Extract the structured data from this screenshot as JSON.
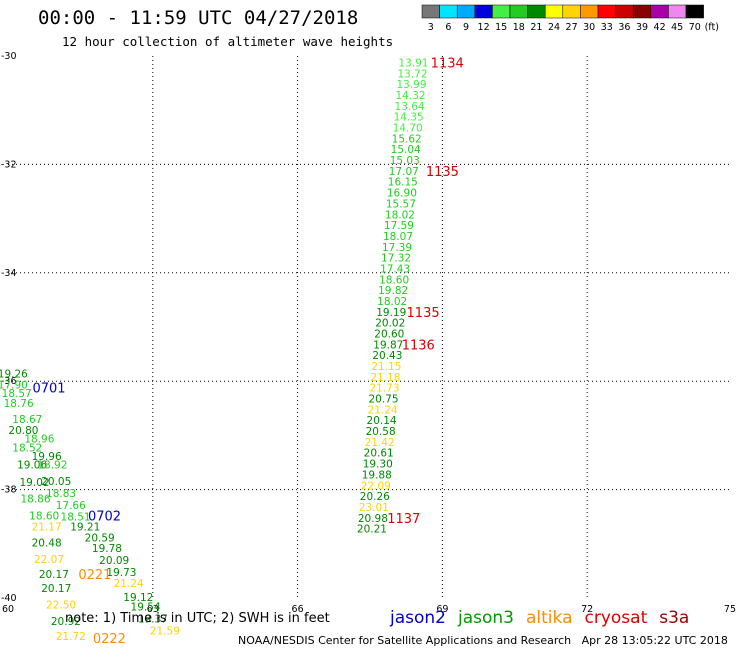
{
  "header": {
    "title": "00:00 - 11:59 UTC 04/27/2018",
    "subtitle": "12 hour collection of altimeter wave heights"
  },
  "color_scale": {
    "unit": "(ft)",
    "bins": [
      {
        "label": "3",
        "color": "#777777"
      },
      {
        "label": "6",
        "color": "#00e5ff"
      },
      {
        "label": "9",
        "color": "#00aaff"
      },
      {
        "label": "12",
        "color": "#0000dd"
      },
      {
        "label": "15",
        "color": "#44ee44"
      },
      {
        "label": "18",
        "color": "#22cc22"
      },
      {
        "label": "21",
        "color": "#008800"
      },
      {
        "label": "24",
        "color": "#ffff00"
      },
      {
        "label": "27",
        "color": "#ffd400"
      },
      {
        "label": "30",
        "color": "#ff9900"
      },
      {
        "label": "33",
        "color": "#ff0000"
      },
      {
        "label": "36",
        "color": "#cc0000"
      },
      {
        "label": "39",
        "color": "#880000"
      },
      {
        "label": "42",
        "color": "#aa00aa"
      },
      {
        "label": "45",
        "color": "#ee88ee"
      },
      {
        "label": "70",
        "color": "#000000"
      }
    ]
  },
  "chart_data": {
    "type": "scatter",
    "title": "00:00 - 11:59 UTC 04/27/2018",
    "subtitle": "12 hour collection of altimeter wave heights",
    "xlabel": "",
    "ylabel": "",
    "xlim": [
      60,
      75
    ],
    "ylim": [
      -40,
      -30
    ],
    "x_ticks": [
      "60",
      "63",
      "66",
      "69",
      "72",
      "75"
    ],
    "y_ticks": [
      "-30",
      "-32",
      "-34",
      "-36",
      "-38",
      "-40"
    ],
    "grid": true,
    "swh_points": [
      {
        "lon": 68.4,
        "lat": -30.12,
        "text": "13.91",
        "color": "#44ee44"
      },
      {
        "lon": 68.38,
        "lat": -30.32,
        "text": "13.72",
        "color": "#44ee44"
      },
      {
        "lon": 68.36,
        "lat": -30.52,
        "text": "13.99",
        "color": "#44ee44"
      },
      {
        "lon": 68.34,
        "lat": -30.72,
        "text": "14.32",
        "color": "#44ee44"
      },
      {
        "lon": 68.32,
        "lat": -30.92,
        "text": "13.64",
        "color": "#44ee44"
      },
      {
        "lon": 68.3,
        "lat": -31.12,
        "text": "14.35",
        "color": "#44ee44"
      },
      {
        "lon": 68.28,
        "lat": -31.32,
        "text": "14.70",
        "color": "#44ee44"
      },
      {
        "lon": 68.26,
        "lat": -31.52,
        "text": "15.62",
        "color": "#22cc22"
      },
      {
        "lon": 68.24,
        "lat": -31.72,
        "text": "15.04",
        "color": "#22cc22"
      },
      {
        "lon": 68.22,
        "lat": -31.92,
        "text": "15.03",
        "color": "#22cc22"
      },
      {
        "lon": 68.2,
        "lat": -32.12,
        "text": "17.07",
        "color": "#22cc22"
      },
      {
        "lon": 68.18,
        "lat": -32.32,
        "text": "16.15",
        "color": "#22cc22"
      },
      {
        "lon": 68.16,
        "lat": -32.52,
        "text": "16.90",
        "color": "#22cc22"
      },
      {
        "lon": 68.14,
        "lat": -32.72,
        "text": "15.57",
        "color": "#22cc22"
      },
      {
        "lon": 68.12,
        "lat": -32.92,
        "text": "18.02",
        "color": "#22cc22"
      },
      {
        "lon": 68.1,
        "lat": -33.12,
        "text": "17.59",
        "color": "#22cc22"
      },
      {
        "lon": 68.08,
        "lat": -33.32,
        "text": "18.07",
        "color": "#22cc22"
      },
      {
        "lon": 68.06,
        "lat": -33.52,
        "text": "17.39",
        "color": "#22cc22"
      },
      {
        "lon": 68.04,
        "lat": -33.72,
        "text": "17.32",
        "color": "#22cc22"
      },
      {
        "lon": 68.02,
        "lat": -33.92,
        "text": "17.43",
        "color": "#22cc22"
      },
      {
        "lon": 68.0,
        "lat": -34.12,
        "text": "18.60",
        "color": "#22cc22"
      },
      {
        "lon": 67.98,
        "lat": -34.32,
        "text": "19.82",
        "color": "#22cc22"
      },
      {
        "lon": 67.96,
        "lat": -34.52,
        "text": "18.02",
        "color": "#22cc22"
      },
      {
        "lon": 67.94,
        "lat": -34.72,
        "text": "19.19",
        "color": "#008800"
      },
      {
        "lon": 67.92,
        "lat": -34.92,
        "text": "20.02",
        "color": "#008800"
      },
      {
        "lon": 67.9,
        "lat": -35.12,
        "text": "20.60",
        "color": "#008800"
      },
      {
        "lon": 67.88,
        "lat": -35.32,
        "text": "19.87",
        "color": "#008800"
      },
      {
        "lon": 67.86,
        "lat": -35.52,
        "text": "20.43",
        "color": "#008800"
      },
      {
        "lon": 67.84,
        "lat": -35.72,
        "text": "21.15",
        "color": "#ffd400"
      },
      {
        "lon": 67.82,
        "lat": -35.92,
        "text": "21.18",
        "color": "#ffd400"
      },
      {
        "lon": 67.8,
        "lat": -36.12,
        "text": "21.73",
        "color": "#ffd400"
      },
      {
        "lon": 67.78,
        "lat": -36.32,
        "text": "20.75",
        "color": "#008800"
      },
      {
        "lon": 67.76,
        "lat": -36.52,
        "text": "21.24",
        "color": "#ffd400"
      },
      {
        "lon": 67.74,
        "lat": -36.72,
        "text": "20.14",
        "color": "#008800"
      },
      {
        "lon": 67.72,
        "lat": -36.92,
        "text": "20.58",
        "color": "#008800"
      },
      {
        "lon": 67.7,
        "lat": -37.12,
        "text": "21.42",
        "color": "#ffd400"
      },
      {
        "lon": 67.68,
        "lat": -37.32,
        "text": "20.61",
        "color": "#008800"
      },
      {
        "lon": 67.66,
        "lat": -37.52,
        "text": "19.30",
        "color": "#008800"
      },
      {
        "lon": 67.64,
        "lat": -37.72,
        "text": "19.88",
        "color": "#008800"
      },
      {
        "lon": 67.62,
        "lat": -37.92,
        "text": "22.09",
        "color": "#ffd400"
      },
      {
        "lon": 67.6,
        "lat": -38.12,
        "text": "20.26",
        "color": "#008800"
      },
      {
        "lon": 67.58,
        "lat": -38.32,
        "text": "23.01",
        "color": "#ffd400"
      },
      {
        "lon": 67.56,
        "lat": -38.52,
        "text": "20.98",
        "color": "#008800"
      },
      {
        "lon": 67.54,
        "lat": -38.72,
        "text": "20.21",
        "color": "#008800"
      },
      {
        "lon": 60.1,
        "lat": -35.86,
        "text": "19.26",
        "color": "#008800"
      },
      {
        "lon": 60.1,
        "lat": -36.06,
        "text": "17.90",
        "color": "#22cc22"
      },
      {
        "lon": 60.18,
        "lat": -36.22,
        "text": "18.57",
        "color": "#22cc22"
      },
      {
        "lon": 60.22,
        "lat": -36.4,
        "text": "18.76",
        "color": "#22cc22"
      },
      {
        "lon": 60.4,
        "lat": -36.7,
        "text": "18.67",
        "color": "#22cc22"
      },
      {
        "lon": 60.32,
        "lat": -36.9,
        "text": "20.80",
        "color": "#008800"
      },
      {
        "lon": 60.65,
        "lat": -37.06,
        "text": "18.96",
        "color": "#22cc22"
      },
      {
        "lon": 60.4,
        "lat": -37.22,
        "text": "18.52",
        "color": "#22cc22"
      },
      {
        "lon": 60.8,
        "lat": -37.38,
        "text": "19.96",
        "color": "#008800"
      },
      {
        "lon": 60.5,
        "lat": -37.54,
        "text": "19.06",
        "color": "#008800"
      },
      {
        "lon": 60.92,
        "lat": -37.54,
        "text": "18.92",
        "color": "#22cc22"
      },
      {
        "lon": 60.55,
        "lat": -37.86,
        "text": "19.02",
        "color": "#008800"
      },
      {
        "lon": 61.0,
        "lat": -37.84,
        "text": "20.05",
        "color": "#008800"
      },
      {
        "lon": 61.1,
        "lat": -38.06,
        "text": "18.83",
        "color": "#22cc22"
      },
      {
        "lon": 60.57,
        "lat": -38.16,
        "text": "18.86",
        "color": "#22cc22"
      },
      {
        "lon": 61.3,
        "lat": -38.28,
        "text": "17.66",
        "color": "#22cc22"
      },
      {
        "lon": 60.75,
        "lat": -38.48,
        "text": "18.60",
        "color": "#22cc22"
      },
      {
        "lon": 61.4,
        "lat": -38.5,
        "text": "18.51",
        "color": "#22cc22"
      },
      {
        "lon": 60.8,
        "lat": -38.68,
        "text": "21.17",
        "color": "#ffd400"
      },
      {
        "lon": 61.6,
        "lat": -38.68,
        "text": "19.21",
        "color": "#008800"
      },
      {
        "lon": 61.9,
        "lat": -38.88,
        "text": "20.59",
        "color": "#008800"
      },
      {
        "lon": 60.8,
        "lat": -38.98,
        "text": "20.48",
        "color": "#008800"
      },
      {
        "lon": 62.05,
        "lat": -39.08,
        "text": "19.78",
        "color": "#008800"
      },
      {
        "lon": 60.85,
        "lat": -39.28,
        "text": "22.07",
        "color": "#ffd400"
      },
      {
        "lon": 62.2,
        "lat": -39.3,
        "text": "20.09",
        "color": "#008800"
      },
      {
        "lon": 62.35,
        "lat": -39.52,
        "text": "19.73",
        "color": "#008800"
      },
      {
        "lon": 60.95,
        "lat": -39.56,
        "text": "20.17",
        "color": "#008800"
      },
      {
        "lon": 62.5,
        "lat": -39.72,
        "text": "21.24",
        "color": "#ffd400"
      },
      {
        "lon": 61.0,
        "lat": -39.82,
        "text": "20.17",
        "color": "#008800"
      },
      {
        "lon": 62.7,
        "lat": -39.98,
        "text": "19.12",
        "color": "#008800"
      },
      {
        "lon": 61.1,
        "lat": -40.12,
        "text": "22.50",
        "color": "#ffd400"
      },
      {
        "lon": 62.85,
        "lat": -40.16,
        "text": "19.54",
        "color": "#008800"
      },
      {
        "lon": 61.2,
        "lat": -40.42,
        "text": "20.92",
        "color": "#008800"
      },
      {
        "lon": 63.0,
        "lat": -40.38,
        "text": "19.37",
        "color": "#008800"
      },
      {
        "lon": 61.3,
        "lat": -40.7,
        "text": "21.72",
        "color": "#ffd400"
      },
      {
        "lon": 63.25,
        "lat": -40.6,
        "text": "21.59",
        "color": "#ffd400"
      }
    ],
    "pass_labels": [
      {
        "lon": 69.1,
        "lat": -30.12,
        "text": "1134",
        "satellite": "cryosat",
        "color": "#dd0000"
      },
      {
        "lon": 69.0,
        "lat": -32.12,
        "text": "1135",
        "satellite": "cryosat",
        "color": "#dd0000"
      },
      {
        "lon": 68.6,
        "lat": -34.72,
        "text": "1135",
        "satellite": "cryosat",
        "color": "#dd0000"
      },
      {
        "lon": 68.5,
        "lat": -35.32,
        "text": "1136",
        "satellite": "cryosat",
        "color": "#dd0000"
      },
      {
        "lon": 68.2,
        "lat": -38.52,
        "text": "1137",
        "satellite": "cryosat",
        "color": "#dd0000"
      },
      {
        "lon": 60.85,
        "lat": -36.12,
        "text": "0701",
        "satellite": "jason2",
        "color": "#0000cc"
      },
      {
        "lon": 62.0,
        "lat": -38.48,
        "text": "0702",
        "satellite": "jason2",
        "color": "#0000cc"
      },
      {
        "lon": 61.8,
        "lat": -39.56,
        "text": "0221",
        "satellite": "altika",
        "color": "#ff8c00"
      },
      {
        "lon": 62.1,
        "lat": -40.74,
        "text": "0222",
        "satellite": "altika",
        "color": "#ff8c00"
      }
    ]
  },
  "footer": {
    "note": "note: 1) Time is in UTC; 2) SWH is in feet",
    "satellites": [
      {
        "name": "jason2",
        "color": "#0000cc"
      },
      {
        "name": "jason3",
        "color": "#009900"
      },
      {
        "name": "altika",
        "color": "#ff8c00"
      },
      {
        "name": "cryosat",
        "color": "#dd0000"
      },
      {
        "name": "s3a",
        "color": "#990000"
      }
    ],
    "credit": "NOAA/NESDIS Center for Satellite Applications and Research   Apr 28 13:05:22 UTC 2018"
  }
}
